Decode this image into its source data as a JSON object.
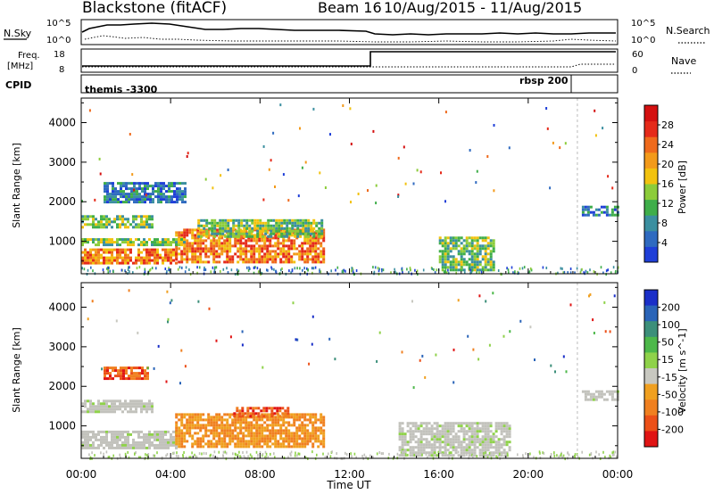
{
  "header": {
    "title": "Blackstone (fitACF)",
    "beam": "Beam 16",
    "dates": "10/Aug/2015 - 11/Aug/2015"
  },
  "panel_labels": {
    "nsky": "N.Sky",
    "nsky_hi": "10^5",
    "nsky_lo": "10^0",
    "freq_line1": "Freq.",
    "freq_line2": "[MHz]",
    "freq_hi": "18",
    "freq_lo": "8",
    "nsearch": "N.Search",
    "nsearch_hi": "10^5",
    "nsearch_lo": "10^0",
    "nave": "Nave",
    "nave_hi": "60",
    "nave_lo": "0",
    "cpid": "CPID",
    "cpid_first": "themis -3300",
    "cpid_second": "rbsp 200"
  },
  "colors": {
    "power": [
      "#1f3fd8",
      "#2f6ac0",
      "#3b8fa0",
      "#3fae4a",
      "#8ccc3a",
      "#f2c20f",
      "#f39a1a",
      "#ef6a1c",
      "#e52a1a",
      "#d41010"
    ],
    "velocity": [
      "#1a2fc8",
      "#2a64b8",
      "#3c8f7a",
      "#4db84a",
      "#8fd24a",
      "#c8c8c0",
      "#f0a020",
      "#f08020",
      "#ec5018",
      "#e01414"
    ],
    "background": "#ffffff",
    "ground_scatter": "#c2c2bc"
  },
  "chart_data": [
    {
      "type": "heatmap",
      "name": "power",
      "xlabel": "",
      "ylabel": "Slant Range [km]",
      "x_ticks": [
        "00:00",
        "04:00",
        "08:00",
        "12:00",
        "16:00",
        "20:00",
        "00:00"
      ],
      "x_range_hours": [
        0,
        24
      ],
      "y_ticks": [
        1000,
        2000,
        3000,
        4000
      ],
      "ylim": [
        180,
        4620
      ],
      "colorbar": {
        "label": "Power [dB]",
        "ticks": [
          4,
          8,
          12,
          16,
          20,
          24,
          28
        ],
        "range": [
          0,
          32
        ]
      },
      "regions": [
        {
          "t": [
            0.0,
            4.2
          ],
          "r": [
            460,
            820
          ],
          "level": "high"
        },
        {
          "t": [
            4.2,
            10.8
          ],
          "r": [
            480,
            1320
          ],
          "level": "high"
        },
        {
          "t": [
            0.0,
            4.6
          ],
          "r": [
            880,
            1080
          ],
          "level": "mid"
        },
        {
          "t": [
            0.0,
            3.2
          ],
          "r": [
            1380,
            1660
          ],
          "level": "mid"
        },
        {
          "t": [
            5.2,
            10.8
          ],
          "r": [
            1100,
            1560
          ],
          "level": "mid"
        },
        {
          "t": [
            16.0,
            18.4
          ],
          "r": [
            280,
            1120
          ],
          "level": "mid"
        },
        {
          "t": [
            22.4,
            24.0
          ],
          "r": [
            1680,
            1900
          ],
          "level": "low"
        },
        {
          "t": [
            1.0,
            4.6
          ],
          "r": [
            2000,
            2500
          ],
          "level": "low"
        }
      ]
    },
    {
      "type": "heatmap",
      "name": "velocity",
      "xlabel": "Time UT",
      "ylabel": "Slant Range [km]",
      "x_ticks": [
        "00:00",
        "04:00",
        "08:00",
        "12:00",
        "16:00",
        "20:00",
        "00:00"
      ],
      "x_range_hours": [
        0,
        24
      ],
      "y_ticks": [
        1000,
        2000,
        3000,
        4000
      ],
      "ylim": [
        180,
        4620
      ],
      "colorbar": {
        "label": "Velocity [m s^-1]",
        "ticks": [
          "200",
          "100",
          "50",
          "15",
          "-15",
          "-50",
          "-100",
          "-200"
        ]
      },
      "regions": [
        {
          "t": [
            0.0,
            4.2
          ],
          "r": [
            460,
            880
          ],
          "value": "ground"
        },
        {
          "t": [
            0.0,
            3.2
          ],
          "r": [
            1380,
            1660
          ],
          "value": "ground"
        },
        {
          "t": [
            4.2,
            10.8
          ],
          "r": [
            480,
            1320
          ],
          "value": "-50"
        },
        {
          "t": [
            6.8,
            9.2
          ],
          "r": [
            1260,
            1480
          ],
          "value": "-200"
        },
        {
          "t": [
            14.2,
            19.2
          ],
          "r": [
            280,
            1100
          ],
          "value": "ground"
        },
        {
          "t": [
            22.4,
            24.0
          ],
          "r": [
            1680,
            1900
          ],
          "value": "ground"
        },
        {
          "t": [
            1.0,
            3.0
          ],
          "r": [
            2200,
            2500
          ],
          "value": "-200"
        }
      ]
    }
  ]
}
